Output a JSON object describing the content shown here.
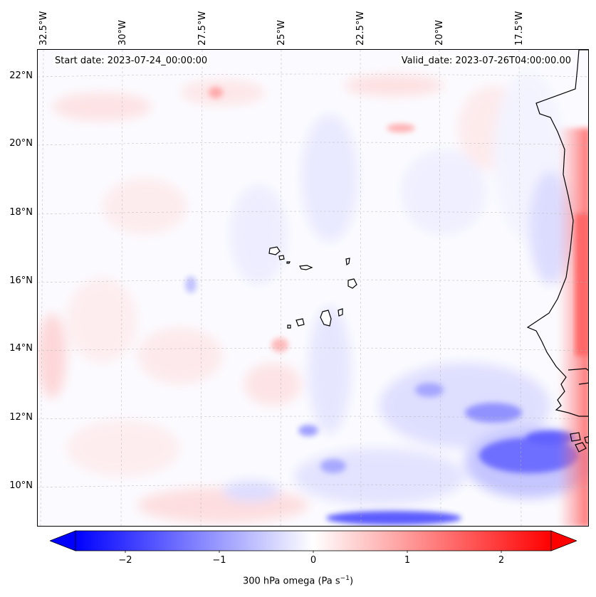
{
  "annotations": {
    "start_date": "Start date: 2023-07-24_00:00:00",
    "valid_date": "Valid_date: 2023-07-26T04:00:00.00"
  },
  "longitude_labels": [
    "32.5°W",
    "30°W",
    "27.5°W",
    "25°W",
    "22.5°W",
    "20°W",
    "17.5°W"
  ],
  "latitude_labels": [
    "22°N",
    "20°N",
    "18°N",
    "16°N",
    "14°N",
    "12°N",
    "10°N"
  ],
  "colorbar": {
    "ticks": [
      "−2",
      "−1",
      "0",
      "1",
      "2"
    ],
    "label": "300 hPa omega (Pa s",
    "label_exponent": "−1",
    "label_suffix": ")",
    "min_color": "#0000ff",
    "mid_color": "#ffffff",
    "max_color": "#ff0000"
  },
  "field_colors": {
    "negative": "#3a3aff",
    "positive": "#ff3a3a",
    "coastline": "#000000"
  }
}
